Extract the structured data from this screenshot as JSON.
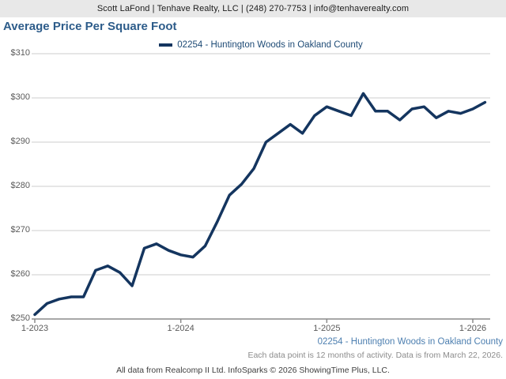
{
  "header": {
    "contact_line": "Scott LaFond | Tenhave Realty, LLC | (248) 270-7753 | info@tenhaverealty.com"
  },
  "title": "Average Price Per Square Foot",
  "legend": {
    "label": "02254 - Huntington Woods in Oakland County"
  },
  "colors": {
    "line": "#14355f",
    "title": "#2d5c8a",
    "legend_text": "#1d4a75",
    "footer_series": "#4d7fb0",
    "gridline": "#cecece",
    "axis": "#8a8a8a",
    "header_bg": "#e8e8e8"
  },
  "chart_data": {
    "type": "line",
    "title": "Average Price Per Square Foot",
    "xlabel": "",
    "ylabel": "",
    "ylim": [
      250,
      310
    ],
    "grid": true,
    "legend_position": "top-center",
    "y_tick_values": [
      250,
      260,
      270,
      280,
      290,
      300,
      310
    ],
    "y_tick_labels": [
      "$250",
      "$260",
      "$270",
      "$280",
      "$290",
      "$300",
      "$310"
    ],
    "x_tick_labels": [
      "1-2023",
      "1-2024",
      "1-2025",
      "1-2026"
    ],
    "x_tick_month_indices": [
      0,
      12,
      24,
      36
    ],
    "x_monthly_start": "2023-01",
    "x_monthly_end": "2026-02",
    "series": [
      {
        "name": "02254 - Huntington Woods in Oakland County",
        "color": "#14355f",
        "values": [
          251,
          253.5,
          254.5,
          255,
          255,
          261,
          262,
          260.5,
          257.5,
          266,
          267,
          265.5,
          264.5,
          264,
          266.5,
          272,
          278,
          280.5,
          284,
          290,
          292,
          294,
          292,
          296,
          298,
          297,
          296,
          301,
          297,
          297,
          295,
          297.5,
          298,
          295.5,
          297,
          296.5,
          297.5,
          299
        ]
      }
    ]
  },
  "footer": {
    "series_label": "02254 - Huntington Woods in Oakland County",
    "note": "Each data point is 12 months of activity. Data is from March 22, 2026.",
    "attribution": "All data from Realcomp II Ltd. InfoSparks © 2026 ShowingTime Plus, LLC."
  }
}
